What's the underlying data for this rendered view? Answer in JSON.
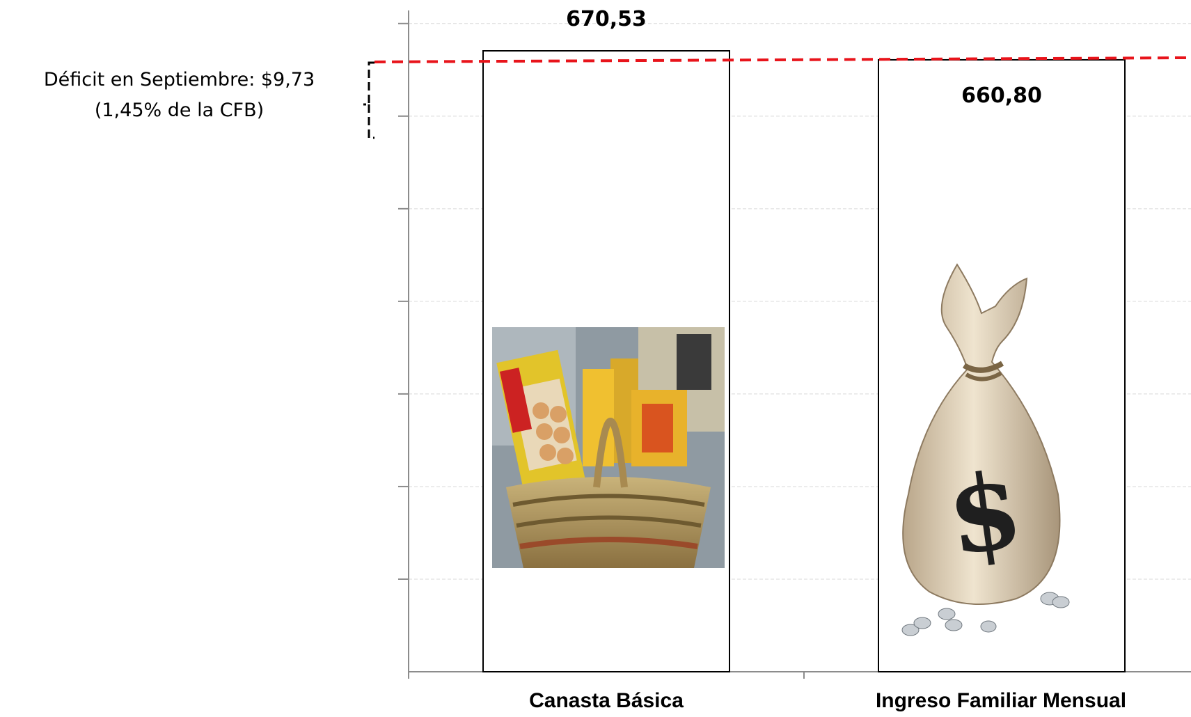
{
  "chart_data": {
    "type": "bar",
    "categories": [
      "Canasta Básica",
      "Ingreso Familiar Mensual"
    ],
    "values": [
      670.53,
      660.8
    ],
    "value_labels": [
      "670,53",
      "660,80"
    ],
    "reference_line": {
      "value": 660.8,
      "color": "#e8141b",
      "style": "dashed"
    },
    "deficit": {
      "line1": "Déficit en Septiembre: $9,73",
      "line2": "(1,45% de la CFB)"
    },
    "bar_fill_images": [
      "food-basket-image",
      "money-bag-image"
    ],
    "grid": true,
    "ylim": [
      0,
      700
    ],
    "title": "",
    "xlabel": "",
    "ylabel": ""
  }
}
